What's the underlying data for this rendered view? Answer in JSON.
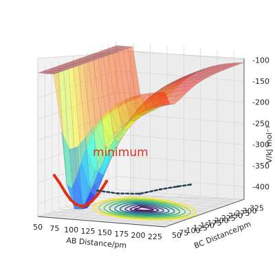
{
  "chart_data": {
    "type": "surface3d",
    "title": "",
    "xlabel": "AB Distance/pm",
    "ylabel": "BC Distance/pm",
    "zlabel": "V/kJ mol⁻¹",
    "x_ticks": [
      "50",
      "75",
      "100",
      "125",
      "150",
      "175",
      "200",
      "225"
    ],
    "y_ticks": [
      "50",
      "75",
      "100",
      "125",
      "150",
      "175",
      "200",
      "225",
      "250",
      "275",
      "300",
      "325"
    ],
    "z_ticks": [
      "-100",
      "-150",
      "-200",
      "-250",
      "-300",
      "-350",
      "-400"
    ],
    "xlim": [
      50,
      240
    ],
    "ylim": [
      50,
      330
    ],
    "zlim": [
      -430,
      -80
    ],
    "colormap": "jet",
    "contour_colormap": "viridis",
    "annotation": {
      "text": "minimum",
      "color": "#d9331f"
    },
    "trajectories": [
      {
        "color": "#e03015",
        "points": [
          [
            62,
            80,
            -338
          ],
          [
            70,
            80,
            -355
          ],
          [
            78,
            80,
            -375
          ],
          [
            86,
            80,
            -392
          ],
          [
            94,
            80,
            -402
          ],
          [
            102,
            80,
            -406
          ],
          [
            110,
            80,
            -402
          ],
          [
            118,
            80,
            -392
          ],
          [
            126,
            80,
            -377
          ],
          [
            134,
            80,
            -358
          ],
          [
            140,
            80,
            -342
          ]
        ]
      },
      {
        "color": "#24414f",
        "points": [
          [
            120,
            95,
            -370
          ],
          [
            140,
            120,
            -380
          ],
          [
            160,
            150,
            -385
          ],
          [
            180,
            175,
            -378
          ],
          [
            200,
            190,
            -372
          ],
          [
            215,
            200,
            -368
          ]
        ]
      }
    ]
  }
}
